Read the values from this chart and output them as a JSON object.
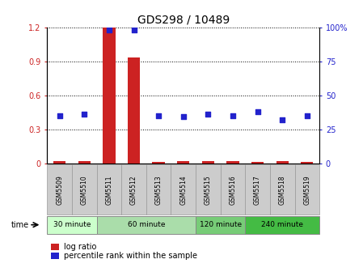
{
  "title": "GDS298 / 10489",
  "samples": [
    "GSM5509",
    "GSM5510",
    "GSM5511",
    "GSM5512",
    "GSM5513",
    "GSM5514",
    "GSM5515",
    "GSM5516",
    "GSM5517",
    "GSM5518",
    "GSM5519"
  ],
  "log_ratio": [
    0.02,
    0.02,
    1.2,
    0.93,
    0.01,
    0.02,
    0.02,
    0.02,
    0.01,
    0.02,
    0.01
  ],
  "percentile": [
    35,
    36,
    98,
    98,
    35,
    34,
    36,
    35,
    38,
    32,
    35
  ],
  "bar_color": "#cc2222",
  "dot_color": "#2222cc",
  "left_ylim": [
    0,
    1.2
  ],
  "right_ylim": [
    0,
    100
  ],
  "left_yticks": [
    0,
    0.3,
    0.6,
    0.9,
    1.2
  ],
  "right_yticks": [
    0,
    25,
    50,
    75,
    100
  ],
  "right_yticklabels": [
    "0",
    "25",
    "50",
    "75",
    "100%"
  ],
  "bg_color": "#ffffff",
  "grid_color": "#000000",
  "sample_box_color": "#cccccc",
  "time_label": "time",
  "legend_log_ratio": "log ratio",
  "legend_percentile": "percentile rank within the sample",
  "group_sample_counts": [
    2,
    4,
    2,
    3
  ],
  "group_labels": [
    "30 minute",
    "60 minute",
    "120 minute",
    "240 minute"
  ],
  "group_colors": [
    "#ccffcc",
    "#aaddaa",
    "#77cc77",
    "#44bb44"
  ]
}
